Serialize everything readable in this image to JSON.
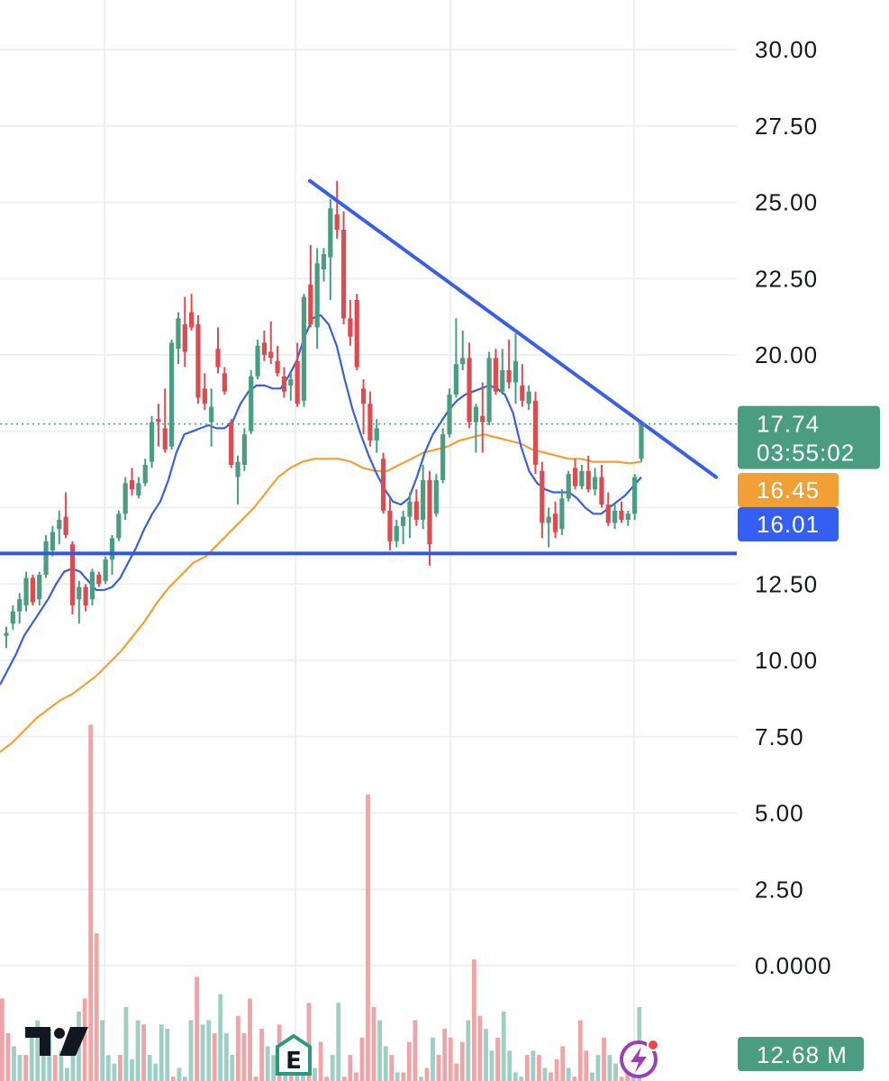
{
  "chart_data": {
    "type": "candlestick",
    "y_axis": {
      "min": -0.5,
      "max": 31.2,
      "ticks": [
        {
          "value": 30,
          "label": "30.00"
        },
        {
          "value": 27.5,
          "label": "27.50"
        },
        {
          "value": 25,
          "label": "25.00"
        },
        {
          "value": 22.5,
          "label": "22.50"
        },
        {
          "value": 20,
          "label": "20.00"
        },
        {
          "value": 12.5,
          "label": "12.50"
        },
        {
          "value": 10,
          "label": "10.00"
        },
        {
          "value": 7.5,
          "label": "7.50"
        },
        {
          "value": 5,
          "label": "5.00"
        },
        {
          "value": 2.5,
          "label": "2.50"
        },
        {
          "value": 0,
          "label": "0.0000"
        }
      ]
    },
    "price_badges": [
      {
        "label": "17.74",
        "sub": "03:55:02",
        "value": 17.74,
        "color": "#4a9d80"
      },
      {
        "label": "16.45",
        "value": 16.45,
        "color": "#f0a035"
      },
      {
        "label": "16.01",
        "value": 16.01,
        "color": "#3360f2"
      }
    ],
    "volume_badge": {
      "label": "12.68 M",
      "color": "#4a9d80"
    },
    "horizontal_line": {
      "value": 13.5,
      "color": "#2f5ae0"
    },
    "trend_line": {
      "start": [
        0,
        25.7
      ],
      "end": [
        1,
        16.0
      ],
      "color": "#3a5fe5"
    },
    "candles": [
      {
        "o": 10.8,
        "h": 11.1,
        "l": 10.4,
        "c": 10.9
      },
      {
        "o": 11.2,
        "h": 11.8,
        "l": 11.0,
        "c": 11.6
      },
      {
        "o": 11.6,
        "h": 12.2,
        "l": 11.2,
        "c": 12.0
      },
      {
        "o": 11.8,
        "h": 12.9,
        "l": 11.6,
        "c": 12.7
      },
      {
        "o": 12.7,
        "h": 12.8,
        "l": 11.8,
        "c": 11.9
      },
      {
        "o": 12.0,
        "h": 12.9,
        "l": 11.8,
        "c": 12.8
      },
      {
        "o": 12.8,
        "h": 14.1,
        "l": 12.7,
        "c": 13.9
      },
      {
        "o": 13.6,
        "h": 14.4,
        "l": 13.4,
        "c": 14.2
      },
      {
        "o": 14.3,
        "h": 14.9,
        "l": 13.8,
        "c": 14.6
      },
      {
        "o": 14.7,
        "h": 15.5,
        "l": 14.0,
        "c": 14.1
      },
      {
        "o": 13.8,
        "h": 13.9,
        "l": 11.5,
        "c": 11.8
      },
      {
        "o": 12.0,
        "h": 12.6,
        "l": 11.2,
        "c": 12.4
      },
      {
        "o": 12.4,
        "h": 12.5,
        "l": 11.6,
        "c": 11.8
      },
      {
        "o": 12.0,
        "h": 13.0,
        "l": 11.8,
        "c": 12.9
      },
      {
        "o": 12.8,
        "h": 12.9,
        "l": 12.4,
        "c": 12.5
      },
      {
        "o": 12.6,
        "h": 13.4,
        "l": 12.5,
        "c": 13.3
      },
      {
        "o": 13.3,
        "h": 14.1,
        "l": 12.8,
        "c": 14.0
      },
      {
        "o": 14.0,
        "h": 14.9,
        "l": 13.9,
        "c": 14.8
      },
      {
        "o": 14.8,
        "h": 16.0,
        "l": 14.6,
        "c": 15.8
      },
      {
        "o": 15.9,
        "h": 16.3,
        "l": 15.4,
        "c": 15.6
      },
      {
        "o": 15.4,
        "h": 16.0,
        "l": 15.3,
        "c": 15.8
      },
      {
        "o": 15.8,
        "h": 16.6,
        "l": 15.7,
        "c": 16.4
      },
      {
        "o": 16.5,
        "h": 18.0,
        "l": 16.3,
        "c": 17.8
      },
      {
        "o": 17.9,
        "h": 18.4,
        "l": 17.0,
        "c": 17.8
      },
      {
        "o": 17.6,
        "h": 18.9,
        "l": 16.8,
        "c": 16.9
      },
      {
        "o": 17.0,
        "h": 20.5,
        "l": 16.9,
        "c": 20.4
      },
      {
        "o": 20.2,
        "h": 21.4,
        "l": 19.7,
        "c": 21.2
      },
      {
        "o": 21.0,
        "h": 21.9,
        "l": 19.6,
        "c": 20.1
      },
      {
        "o": 21.4,
        "h": 22.0,
        "l": 20.8,
        "c": 20.9
      },
      {
        "o": 21.0,
        "h": 21.3,
        "l": 18.4,
        "c": 18.6
      },
      {
        "o": 18.9,
        "h": 19.4,
        "l": 18.2,
        "c": 18.4
      },
      {
        "o": 17.8,
        "h": 18.9,
        "l": 17.0,
        "c": 18.3
      },
      {
        "o": 20.2,
        "h": 20.9,
        "l": 19.4,
        "c": 19.6
      },
      {
        "o": 19.4,
        "h": 19.6,
        "l": 18.7,
        "c": 18.8
      },
      {
        "o": 17.8,
        "h": 17.9,
        "l": 16.3,
        "c": 16.4
      },
      {
        "o": 16.0,
        "h": 16.7,
        "l": 15.1,
        "c": 16.5
      },
      {
        "o": 16.4,
        "h": 17.6,
        "l": 16.2,
        "c": 17.4
      },
      {
        "o": 17.5,
        "h": 19.5,
        "l": 17.4,
        "c": 19.3
      },
      {
        "o": 19.3,
        "h": 20.5,
        "l": 19.2,
        "c": 20.3
      },
      {
        "o": 20.4,
        "h": 20.8,
        "l": 19.8,
        "c": 20.0
      },
      {
        "o": 20.1,
        "h": 21.1,
        "l": 19.7,
        "c": 19.9
      },
      {
        "o": 19.8,
        "h": 20.3,
        "l": 19.3,
        "c": 19.4
      },
      {
        "o": 19.3,
        "h": 19.6,
        "l": 18.6,
        "c": 18.8
      },
      {
        "o": 19.0,
        "h": 19.4,
        "l": 18.5,
        "c": 19.2
      },
      {
        "o": 19.8,
        "h": 20.4,
        "l": 18.3,
        "c": 18.4
      },
      {
        "o": 18.5,
        "h": 22.0,
        "l": 18.3,
        "c": 21.9
      },
      {
        "o": 22.3,
        "h": 23.6,
        "l": 20.9,
        "c": 21.0
      },
      {
        "o": 20.9,
        "h": 23.5,
        "l": 20.2,
        "c": 23.0
      },
      {
        "o": 22.8,
        "h": 23.5,
        "l": 22.4,
        "c": 23.3
      },
      {
        "o": 23.2,
        "h": 25.1,
        "l": 21.8,
        "c": 24.8
      },
      {
        "o": 24.6,
        "h": 25.7,
        "l": 23.8,
        "c": 24.1
      },
      {
        "o": 24.1,
        "h": 24.7,
        "l": 21.0,
        "c": 21.2
      },
      {
        "o": 21.2,
        "h": 21.8,
        "l": 20.3,
        "c": 20.6
      },
      {
        "o": 21.8,
        "h": 22.0,
        "l": 19.5,
        "c": 19.6
      },
      {
        "o": 18.9,
        "h": 19.2,
        "l": 17.4,
        "c": 18.4
      },
      {
        "o": 18.4,
        "h": 18.8,
        "l": 17.0,
        "c": 17.2
      },
      {
        "o": 17.2,
        "h": 17.9,
        "l": 16.8,
        "c": 17.6
      },
      {
        "o": 16.6,
        "h": 16.8,
        "l": 14.8,
        "c": 14.9
      },
      {
        "o": 14.9,
        "h": 15.3,
        "l": 13.6,
        "c": 13.9
      },
      {
        "o": 13.9,
        "h": 14.6,
        "l": 13.7,
        "c": 14.4
      },
      {
        "o": 14.4,
        "h": 14.9,
        "l": 13.8,
        "c": 14.7
      },
      {
        "o": 14.7,
        "h": 15.5,
        "l": 14.0,
        "c": 15.2
      },
      {
        "o": 15.2,
        "h": 15.6,
        "l": 14.4,
        "c": 14.6
      },
      {
        "o": 14.6,
        "h": 16.4,
        "l": 14.3,
        "c": 15.9
      },
      {
        "o": 15.9,
        "h": 16.2,
        "l": 13.1,
        "c": 13.8
      },
      {
        "o": 14.8,
        "h": 16.1,
        "l": 14.7,
        "c": 15.9
      },
      {
        "o": 15.9,
        "h": 17.6,
        "l": 15.8,
        "c": 17.4
      },
      {
        "o": 17.4,
        "h": 18.9,
        "l": 17.3,
        "c": 18.7
      },
      {
        "o": 18.7,
        "h": 21.2,
        "l": 18.6,
        "c": 19.7
      },
      {
        "o": 19.7,
        "h": 20.8,
        "l": 19.5,
        "c": 19.9
      },
      {
        "o": 19.9,
        "h": 20.4,
        "l": 17.6,
        "c": 17.8
      },
      {
        "o": 17.8,
        "h": 18.4,
        "l": 16.8,
        "c": 18.3
      },
      {
        "o": 18.0,
        "h": 19.1,
        "l": 16.8,
        "c": 17.8
      },
      {
        "o": 17.8,
        "h": 20.1,
        "l": 17.7,
        "c": 19.9
      },
      {
        "o": 19.9,
        "h": 20.2,
        "l": 18.7,
        "c": 18.8
      },
      {
        "o": 18.8,
        "h": 20.2,
        "l": 18.7,
        "c": 19.5
      },
      {
        "o": 19.5,
        "h": 20.5,
        "l": 18.9,
        "c": 19.1
      },
      {
        "o": 19.1,
        "h": 20.7,
        "l": 18.4,
        "c": 19.8
      },
      {
        "o": 19.0,
        "h": 19.7,
        "l": 18.3,
        "c": 18.5
      },
      {
        "o": 18.4,
        "h": 19.0,
        "l": 18.2,
        "c": 18.8
      },
      {
        "o": 18.5,
        "h": 18.8,
        "l": 16.1,
        "c": 16.4
      },
      {
        "o": 16.2,
        "h": 16.5,
        "l": 14.0,
        "c": 14.5
      },
      {
        "o": 14.5,
        "h": 15.0,
        "l": 13.7,
        "c": 14.7
      },
      {
        "o": 14.8,
        "h": 15.2,
        "l": 14.0,
        "c": 14.2
      },
      {
        "o": 14.3,
        "h": 15.6,
        "l": 14.1,
        "c": 15.3
      },
      {
        "o": 15.3,
        "h": 16.2,
        "l": 15.2,
        "c": 16.1
      },
      {
        "o": 16.3,
        "h": 16.6,
        "l": 15.6,
        "c": 15.7
      },
      {
        "o": 15.7,
        "h": 16.4,
        "l": 15.6,
        "c": 16.2
      },
      {
        "o": 16.2,
        "h": 16.7,
        "l": 15.5,
        "c": 15.6
      },
      {
        "o": 15.6,
        "h": 16.3,
        "l": 15.4,
        "c": 16.0
      },
      {
        "o": 16.0,
        "h": 16.4,
        "l": 15.0,
        "c": 15.1
      },
      {
        "o": 15.1,
        "h": 15.5,
        "l": 14.4,
        "c": 14.5
      },
      {
        "o": 14.5,
        "h": 15.1,
        "l": 14.3,
        "c": 14.9
      },
      {
        "o": 14.9,
        "h": 15.2,
        "l": 14.5,
        "c": 14.6
      },
      {
        "o": 14.6,
        "h": 14.9,
        "l": 14.4,
        "c": 14.8
      },
      {
        "o": 14.8,
        "h": 16.1,
        "l": 14.6,
        "c": 16.0
      },
      {
        "o": 16.6,
        "h": 17.8,
        "l": 16.5,
        "c": 17.74
      }
    ],
    "ma_fast": [
      9.2,
      9.7,
      10.2,
      10.8,
      11.2,
      11.6,
      12.0,
      12.5,
      12.9,
      13.0,
      12.9,
      12.6,
      12.3,
      12.3,
      12.4,
      12.7,
      13.2,
      13.7,
      14.3,
      14.8,
      15.2,
      15.9,
      16.8,
      17.4,
      17.5,
      17.6,
      17.7,
      17.6,
      17.6,
      17.8,
      18.4,
      18.8,
      19.0,
      19.0,
      18.9,
      18.9,
      19.3,
      19.8,
      20.6,
      21.2,
      21.3,
      21.0,
      20.3,
      19.2,
      18.2,
      17.4,
      16.7,
      16.1,
      15.6,
      15.2,
      15.1,
      15.3,
      16.0,
      16.8,
      17.4,
      17.8,
      18.2,
      18.5,
      18.7,
      18.8,
      18.9,
      19.0,
      18.9,
      18.7,
      18.1,
      17.0,
      16.2,
      15.8,
      15.6,
      15.5,
      15.5,
      15.5,
      15.3,
      15.0,
      14.8,
      14.8,
      15.0,
      15.2,
      15.4,
      15.7,
      16.0
    ],
    "ma_slow": [
      7.0,
      7.3,
      7.7,
      8.1,
      8.4,
      8.7,
      8.9,
      9.2,
      9.5,
      9.9,
      10.3,
      10.8,
      11.3,
      11.9,
      12.4,
      12.8,
      13.2,
      13.4,
      13.8,
      14.2,
      14.6,
      15.0,
      15.5,
      16.0,
      16.3,
      16.5,
      16.6,
      16.6,
      16.6,
      16.5,
      16.3,
      16.2,
      16.2,
      16.4,
      16.6,
      16.8,
      16.9,
      17.0,
      17.2,
      17.3,
      17.4,
      17.3,
      17.2,
      17.1,
      16.9,
      16.8,
      16.7,
      16.6,
      16.6,
      16.5,
      16.5,
      16.5,
      16.45,
      16.5
    ],
    "volumes": [
      {
        "v": 1.9,
        "d": "dn"
      },
      {
        "v": 1.1,
        "d": "dn"
      },
      {
        "v": 0.8,
        "d": "up"
      },
      {
        "v": 0.6,
        "d": "up"
      },
      {
        "v": 0.6,
        "d": "dn"
      },
      {
        "v": 1.0,
        "d": "up"
      },
      {
        "v": 1.4,
        "d": "up"
      },
      {
        "v": 0.9,
        "d": "up"
      },
      {
        "v": 1.2,
        "d": "up"
      },
      {
        "v": 0.6,
        "d": "dn"
      },
      {
        "v": 0.7,
        "d": "up"
      },
      {
        "v": 0.3,
        "d": "up"
      },
      {
        "v": 1.1,
        "d": "up"
      },
      {
        "v": 1.6,
        "d": "up"
      },
      {
        "v": 1.9,
        "d": "dn"
      },
      {
        "v": 8.2,
        "d": "dn"
      },
      {
        "v": 3.4,
        "d": "dn"
      },
      {
        "v": 1.4,
        "d": "up"
      },
      {
        "v": 0.6,
        "d": "up"
      },
      {
        "v": 0.4,
        "d": "up"
      },
      {
        "v": 0.6,
        "d": "dn"
      },
      {
        "v": 1.7,
        "d": "up"
      },
      {
        "v": 0.5,
        "d": "up"
      },
      {
        "v": 1.4,
        "d": "up"
      },
      {
        "v": 1.3,
        "d": "dn"
      },
      {
        "v": 0.6,
        "d": "up"
      },
      {
        "v": 0.4,
        "d": "up"
      },
      {
        "v": 1.3,
        "d": "up"
      },
      {
        "v": 1.2,
        "d": "up"
      },
      {
        "v": 0.1,
        "d": "dn"
      },
      {
        "v": 0.3,
        "d": "up"
      },
      {
        "v": 0.1,
        "d": "up"
      },
      {
        "v": 1.4,
        "d": "up"
      },
      {
        "v": 2.4,
        "d": "dn"
      },
      {
        "v": 1.3,
        "d": "up"
      },
      {
        "v": 1.4,
        "d": "up"
      },
      {
        "v": 1.1,
        "d": "dn"
      },
      {
        "v": 2.0,
        "d": "up"
      },
      {
        "v": 1.1,
        "d": "up"
      },
      {
        "v": 0.6,
        "d": "up"
      },
      {
        "v": 1.5,
        "d": "dn"
      },
      {
        "v": 1.1,
        "d": "dn"
      },
      {
        "v": 1.9,
        "d": "dn"
      },
      {
        "v": 0.1,
        "d": "dn"
      },
      {
        "v": 1.2,
        "d": "dn"
      },
      {
        "v": 0.8,
        "d": "up"
      },
      {
        "v": 0.6,
        "d": "up"
      },
      {
        "v": 1.3,
        "d": "dn"
      },
      {
        "v": 0.8,
        "d": "up"
      },
      {
        "v": 0.3,
        "d": "dn"
      },
      {
        "v": 0.4,
        "d": "up"
      },
      {
        "v": 0.4,
        "d": "up"
      },
      {
        "v": 1.8,
        "d": "dn"
      },
      {
        "v": 0.3,
        "d": "up"
      },
      {
        "v": 0.9,
        "d": "dn"
      },
      {
        "v": 0.1,
        "d": "dn"
      },
      {
        "v": 0.6,
        "d": "up"
      },
      {
        "v": 1.8,
        "d": "up"
      },
      {
        "v": 0.1,
        "d": "dn"
      },
      {
        "v": 0.6,
        "d": "dn"
      },
      {
        "v": 0.2,
        "d": "dn"
      },
      {
        "v": 1.0,
        "d": "dn"
      },
      {
        "v": 6.6,
        "d": "dn"
      },
      {
        "v": 1.7,
        "d": "dn"
      },
      {
        "v": 1.4,
        "d": "up"
      },
      {
        "v": 0.8,
        "d": "up"
      },
      {
        "v": 0.6,
        "d": "dn"
      },
      {
        "v": 0.2,
        "d": "up"
      },
      {
        "v": 0.2,
        "d": "dn"
      },
      {
        "v": 0.9,
        "d": "dn"
      },
      {
        "v": 1.4,
        "d": "dn"
      },
      {
        "v": 0.1,
        "d": "up"
      },
      {
        "v": 0.3,
        "d": "dn"
      },
      {
        "v": 1.0,
        "d": "up"
      },
      {
        "v": 0.6,
        "d": "dn"
      },
      {
        "v": 1.2,
        "d": "dn"
      },
      {
        "v": 1.0,
        "d": "dn"
      },
      {
        "v": 0.4,
        "d": "dn"
      },
      {
        "v": 0.9,
        "d": "dn"
      },
      {
        "v": 1.4,
        "d": "up"
      },
      {
        "v": 2.8,
        "d": "dn"
      },
      {
        "v": 1.5,
        "d": "dn"
      },
      {
        "v": 1.2,
        "d": "up"
      },
      {
        "v": 0.7,
        "d": "up"
      },
      {
        "v": 1.0,
        "d": "dn"
      },
      {
        "v": 1.6,
        "d": "up"
      },
      {
        "v": 0.7,
        "d": "up"
      },
      {
        "v": 0.2,
        "d": "up"
      },
      {
        "v": 0.1,
        "d": "up"
      },
      {
        "v": 0.6,
        "d": "dn"
      },
      {
        "v": 0.7,
        "d": "up"
      },
      {
        "v": 0.6,
        "d": "dn"
      },
      {
        "v": 0.3,
        "d": "up"
      },
      {
        "v": 0.2,
        "d": "dn"
      },
      {
        "v": 0.5,
        "d": "dn"
      },
      {
        "v": 0.8,
        "d": "dn"
      },
      {
        "v": 0.3,
        "d": "up"
      },
      {
        "v": 0.1,
        "d": "dn"
      },
      {
        "v": 1.4,
        "d": "dn"
      },
      {
        "v": 0.7,
        "d": "dn"
      },
      {
        "v": 0.2,
        "d": "up"
      },
      {
        "v": 0.6,
        "d": "up"
      },
      {
        "v": 1.0,
        "d": "dn"
      },
      {
        "v": 0.6,
        "d": "up"
      },
      {
        "v": 0.4,
        "d": "up"
      },
      {
        "v": 0.1,
        "d": "dn"
      },
      {
        "v": 0.3,
        "d": "dn"
      },
      {
        "v": 0.9,
        "d": "up"
      },
      {
        "v": 1.7,
        "d": "up"
      }
    ],
    "volume_scale_max": 8.4,
    "colors": {
      "up": "#4a9d80",
      "down": "#df4a4f",
      "vol_up": "#9ecfc4",
      "vol_down": "#eea5a7",
      "ma_fast": "#3a5fd8",
      "ma_slow": "#f0a035",
      "grid": "#eef0f3"
    }
  },
  "logos": {
    "left": "tradingview-logo",
    "earnings": "E",
    "right": "lightning-icon"
  }
}
